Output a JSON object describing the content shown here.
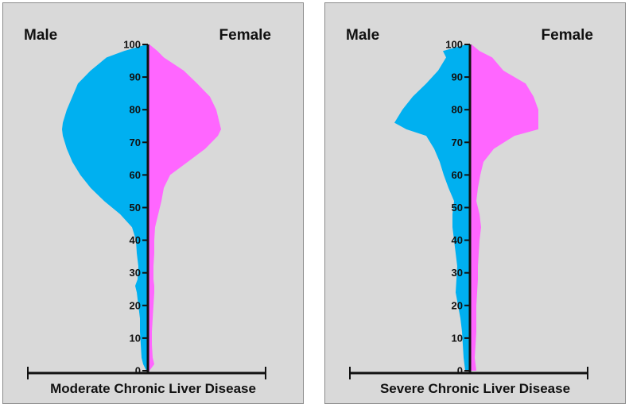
{
  "chart_data": [
    {
      "type": "area",
      "title": "Moderate Chronic Liver Disease",
      "left_label": "Male",
      "right_label": "Female",
      "y_ticks": [
        0,
        10,
        20,
        30,
        40,
        50,
        60,
        70,
        80,
        90,
        100
      ],
      "ylim": [
        0,
        100
      ],
      "xlim": [
        -1.5,
        1.5
      ],
      "y": [
        0,
        2,
        4,
        8,
        12,
        16,
        20,
        24,
        26,
        28,
        32,
        36,
        40,
        44,
        48,
        52,
        56,
        60,
        64,
        68,
        72,
        74,
        76,
        80,
        84,
        88,
        92,
        96,
        98,
        100
      ],
      "series": [
        {
          "name": "Male",
          "color": "#00b0f0",
          "values": [
            0.02,
            0.06,
            0.08,
            0.09,
            0.1,
            0.1,
            0.12,
            0.14,
            0.16,
            0.13,
            0.12,
            0.14,
            0.15,
            0.2,
            0.35,
            0.55,
            0.72,
            0.85,
            0.95,
            1.02,
            1.07,
            1.08,
            1.07,
            1.02,
            0.95,
            0.88,
            0.72,
            0.52,
            0.3,
            0.02
          ]
        },
        {
          "name": "Female",
          "color": "#ff66ff",
          "values": [
            0.02,
            0.08,
            0.06,
            0.05,
            0.05,
            0.06,
            0.07,
            0.08,
            0.08,
            0.07,
            0.07,
            0.08,
            0.08,
            0.09,
            0.13,
            0.17,
            0.2,
            0.28,
            0.5,
            0.72,
            0.88,
            0.92,
            0.9,
            0.86,
            0.78,
            0.62,
            0.45,
            0.2,
            0.12,
            0.02
          ]
        }
      ]
    },
    {
      "type": "area",
      "title": "Severe Chronic Liver Disease",
      "left_label": "Male",
      "right_label": "Female",
      "y_ticks": [
        0,
        10,
        20,
        30,
        40,
        50,
        60,
        70,
        80,
        90,
        100
      ],
      "ylim": [
        0,
        100
      ],
      "xlim": [
        -1.5,
        1.5
      ],
      "y": [
        0,
        4,
        8,
        12,
        16,
        20,
        24,
        28,
        32,
        36,
        40,
        44,
        48,
        52,
        56,
        60,
        64,
        68,
        72,
        74,
        76,
        80,
        84,
        88,
        92,
        96,
        98,
        100
      ],
      "series": [
        {
          "name": "Male",
          "color": "#00b0f0",
          "values": [
            0.06,
            0.08,
            0.09,
            0.1,
            0.12,
            0.15,
            0.18,
            0.17,
            0.16,
            0.18,
            0.2,
            0.22,
            0.22,
            0.2,
            0.27,
            0.33,
            0.38,
            0.45,
            0.55,
            0.8,
            0.95,
            0.85,
            0.72,
            0.55,
            0.4,
            0.3,
            0.34,
            0.05
          ]
        },
        {
          "name": "Female",
          "color": "#ff66ff",
          "values": [
            0.08,
            0.06,
            0.07,
            0.08,
            0.08,
            0.08,
            0.09,
            0.1,
            0.1,
            0.11,
            0.12,
            0.14,
            0.12,
            0.08,
            0.1,
            0.13,
            0.17,
            0.3,
            0.56,
            0.86,
            0.86,
            0.86,
            0.8,
            0.7,
            0.42,
            0.28,
            0.12,
            0.02
          ]
        }
      ]
    }
  ]
}
